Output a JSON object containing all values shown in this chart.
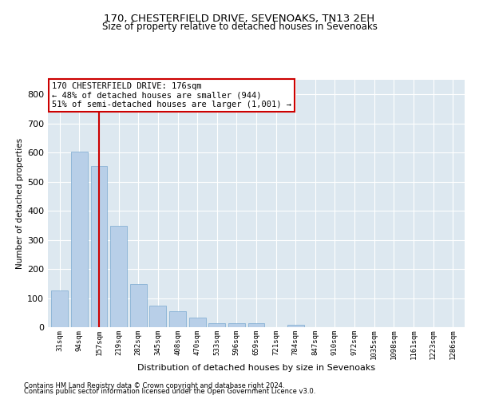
{
  "title1": "170, CHESTERFIELD DRIVE, SEVENOAKS, TN13 2EH",
  "title2": "Size of property relative to detached houses in Sevenoaks",
  "xlabel": "Distribution of detached houses by size in Sevenoaks",
  "ylabel": "Number of detached properties",
  "categories": [
    "31sqm",
    "94sqm",
    "157sqm",
    "219sqm",
    "282sqm",
    "345sqm",
    "408sqm",
    "470sqm",
    "533sqm",
    "596sqm",
    "659sqm",
    "721sqm",
    "784sqm",
    "847sqm",
    "910sqm",
    "972sqm",
    "1035sqm",
    "1098sqm",
    "1161sqm",
    "1223sqm",
    "1286sqm"
  ],
  "values": [
    125,
    603,
    555,
    348,
    148,
    75,
    56,
    32,
    15,
    13,
    13,
    0,
    7,
    0,
    0,
    0,
    0,
    0,
    0,
    0,
    0
  ],
  "bar_color": "#b8cfe8",
  "bar_edge_color": "#7aaad0",
  "vline_x": 2.0,
  "vline_color": "#cc0000",
  "annotation_box_text": "170 CHESTERFIELD DRIVE: 176sqm\n← 48% of detached houses are smaller (944)\n51% of semi-detached houses are larger (1,001) →",
  "annotation_box_color": "#cc0000",
  "annotation_box_bg": "#ffffff",
  "ylim": [
    0,
    850
  ],
  "yticks": [
    0,
    100,
    200,
    300,
    400,
    500,
    600,
    700,
    800
  ],
  "footer1": "Contains HM Land Registry data © Crown copyright and database right 2024.",
  "footer2": "Contains public sector information licensed under the Open Government Licence v3.0.",
  "plot_bg_color": "#dde8f0",
  "title1_fontsize": 9.5,
  "title2_fontsize": 8.5,
  "grid_color": "#ffffff",
  "tick_label_fontsize": 6.5,
  "annotation_fontsize": 7.5
}
